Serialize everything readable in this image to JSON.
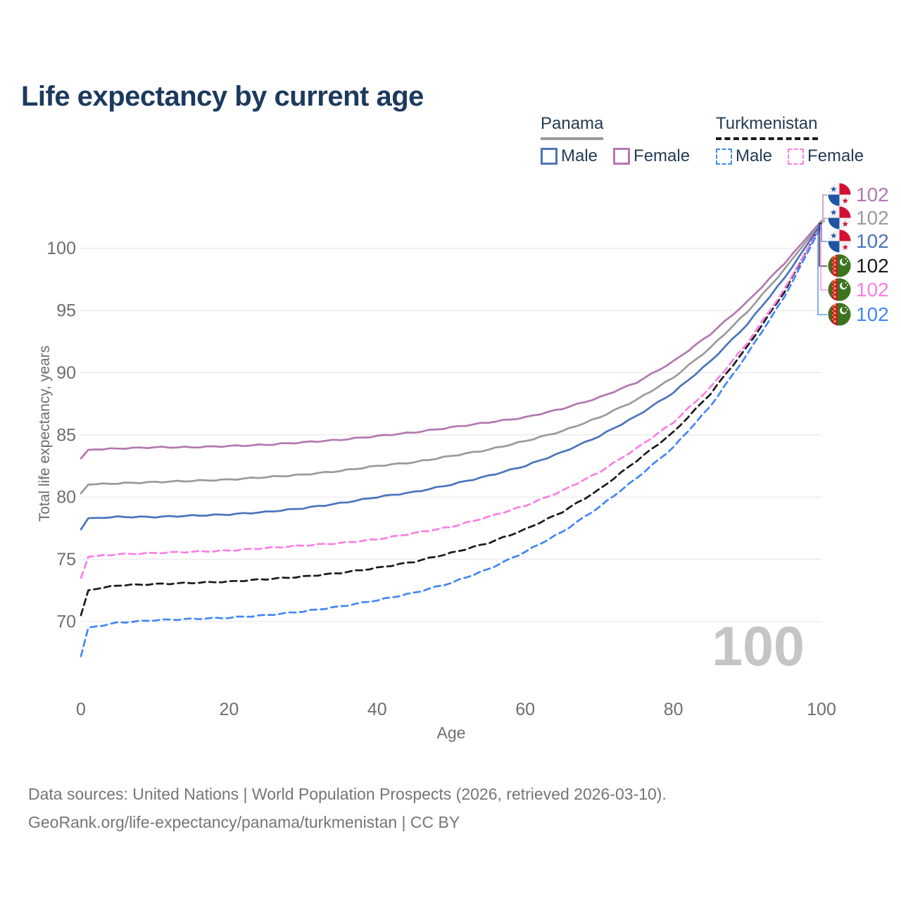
{
  "title": "Life expectancy by current age",
  "legend": {
    "groups": [
      {
        "label": "Panama",
        "line_style": "solid",
        "line_color": "#9a9a9a",
        "items": [
          {
            "label": "Male",
            "color": "#4a74bb",
            "dashed": false
          },
          {
            "label": "Female",
            "color": "#b378b0",
            "dashed": false
          }
        ]
      },
      {
        "label": "Turkmenistan",
        "line_style": "dashed",
        "line_color": "#1a1a1a",
        "items": [
          {
            "label": "Male",
            "color": "#4287f5",
            "dashed": true
          },
          {
            "label": "Female",
            "color": "#fc7ee4",
            "dashed": true
          }
        ]
      }
    ]
  },
  "axes": {
    "y_label": "Total life expectancy, years",
    "x_label": "Age",
    "y_ticks": [
      70,
      75,
      80,
      85,
      90,
      95,
      100
    ],
    "x_ticks": [
      0,
      20,
      40,
      60,
      80,
      100
    ]
  },
  "watermark": "100",
  "end_labels": [
    {
      "country": "Panama",
      "icon": "panama-flag-icon",
      "value": "102",
      "color": "#b378b0"
    },
    {
      "country": "Panama",
      "icon": "panama-flag-icon",
      "value": "102",
      "color": "#9a9a9a"
    },
    {
      "country": "Panama",
      "icon": "panama-flag-icon",
      "value": "102",
      "color": "#4a74bb"
    },
    {
      "country": "Turkmenistan",
      "icon": "turkmenistan-flag-icon",
      "value": "102",
      "color": "#1a1a1a"
    },
    {
      "country": "Turkmenistan",
      "icon": "turkmenistan-flag-icon",
      "value": "102",
      "color": "#fc7ee4"
    },
    {
      "country": "Turkmenistan",
      "icon": "turkmenistan-flag-icon",
      "value": "102",
      "color": "#4287f5"
    }
  ],
  "footer": {
    "line1": "Data sources: United Nations | World Population Prospects (2026, retrieved 2026-03-10).",
    "line2": "GeoRank.org/life-expectancy/panama/turkmenistan | CC BY"
  },
  "chart_data": {
    "type": "line",
    "title": "Life expectancy by current age",
    "xlabel": "Age",
    "ylabel": "Total life expectancy, years",
    "xlim": [
      0,
      100
    ],
    "ylim": [
      66,
      103
    ],
    "grid": "horizontal",
    "legend_position": "top-right",
    "x": [
      0,
      1,
      5,
      10,
      15,
      20,
      25,
      30,
      35,
      40,
      45,
      50,
      55,
      60,
      65,
      70,
      75,
      80,
      85,
      90,
      95,
      100
    ],
    "series": [
      {
        "name": "Panama Female",
        "color": "#b378b0",
        "dashed": false,
        "values": [
          83.1,
          83.8,
          83.9,
          84.0,
          84.0,
          84.1,
          84.2,
          84.4,
          84.6,
          84.9,
          85.2,
          85.6,
          86.0,
          86.4,
          87.1,
          88.0,
          89.2,
          90.9,
          93.1,
          95.7,
          98.8,
          102.2
        ]
      },
      {
        "name": "Panama Both sexes",
        "color": "#9a9a9a",
        "dashed": false,
        "values": [
          80.3,
          81.0,
          81.1,
          81.2,
          81.3,
          81.4,
          81.6,
          81.8,
          82.1,
          82.5,
          82.8,
          83.3,
          83.8,
          84.5,
          85.3,
          86.4,
          87.8,
          89.6,
          92.0,
          94.9,
          98.3,
          102.1
        ]
      },
      {
        "name": "Panama Male",
        "color": "#4a74bb",
        "dashed": false,
        "values": [
          77.4,
          78.3,
          78.4,
          78.4,
          78.5,
          78.6,
          78.8,
          79.1,
          79.5,
          80.0,
          80.4,
          81.0,
          81.7,
          82.5,
          83.6,
          84.9,
          86.5,
          88.4,
          90.9,
          93.9,
          97.6,
          102.0
        ]
      },
      {
        "name": "Turkmenistan Both sexes",
        "color": "#1a1a1a",
        "dashed": true,
        "values": [
          70.5,
          72.5,
          72.9,
          73.0,
          73.1,
          73.2,
          73.4,
          73.6,
          73.9,
          74.3,
          74.8,
          75.5,
          76.3,
          77.4,
          78.8,
          80.6,
          82.9,
          85.2,
          88.3,
          92.1,
          96.5,
          102.0
        ]
      },
      {
        "name": "Turkmenistan Female",
        "color": "#fc7ee4",
        "dashed": true,
        "values": [
          73.5,
          75.2,
          75.4,
          75.5,
          75.6,
          75.7,
          75.9,
          76.1,
          76.3,
          76.6,
          77.1,
          77.6,
          78.4,
          79.3,
          80.5,
          82.0,
          83.9,
          86.0,
          88.8,
          92.4,
          96.7,
          101.9
        ]
      },
      {
        "name": "Turkmenistan Male",
        "color": "#4287f5",
        "dashed": true,
        "values": [
          67.2,
          69.5,
          69.9,
          70.1,
          70.2,
          70.3,
          70.5,
          70.8,
          71.2,
          71.7,
          72.3,
          73.1,
          74.2,
          75.6,
          77.2,
          79.2,
          81.5,
          84.0,
          87.3,
          91.5,
          96.1,
          101.8
        ]
      }
    ]
  }
}
